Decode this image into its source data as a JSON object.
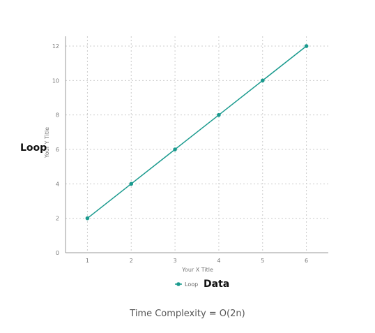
{
  "chart_data": {
    "type": "line",
    "x": [
      1,
      2,
      3,
      4,
      5,
      6
    ],
    "series": [
      {
        "name": "Loop",
        "values": [
          2,
          4,
          6,
          8,
          10,
          12
        ],
        "color": "#1a9a8e"
      }
    ],
    "xlabel": "Your X Title",
    "ylabel": "Your Y Title",
    "xticks": [
      1,
      2,
      3,
      4,
      5,
      6
    ],
    "yticks": [
      0,
      2,
      4,
      6,
      8,
      10,
      12
    ],
    "xlim": [
      0.5,
      6.5
    ],
    "ylim": [
      0,
      12
    ],
    "grid": true,
    "legend_position": "bottom"
  },
  "annotations": {
    "side_label": "Loop",
    "legend_extra": "Data",
    "caption": "Time Complexity = O(2n)"
  },
  "colors": {
    "line": "#1a9a8e",
    "grid": "#cccccc",
    "axis": "#999999"
  }
}
